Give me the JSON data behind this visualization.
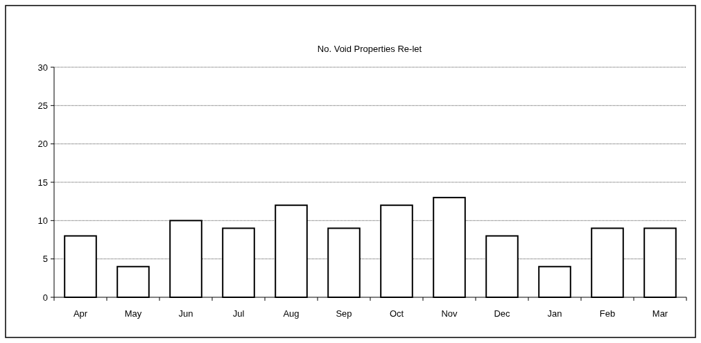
{
  "chart_data": {
    "type": "bar",
    "title": "No. Void Properties Re-let",
    "categories": [
      "Apr",
      "May",
      "Jun",
      "Jul",
      "Aug",
      "Sep",
      "Oct",
      "Nov",
      "Dec",
      "Jan",
      "Feb",
      "Mar"
    ],
    "values": [
      8,
      4,
      10,
      9,
      12,
      9,
      12,
      13,
      8,
      4,
      9,
      9
    ],
    "color": "#ffffff",
    "ylim": [
      0,
      30
    ],
    "yticks": [
      0,
      5,
      10,
      15,
      20,
      25,
      30
    ],
    "grid": "y"
  }
}
